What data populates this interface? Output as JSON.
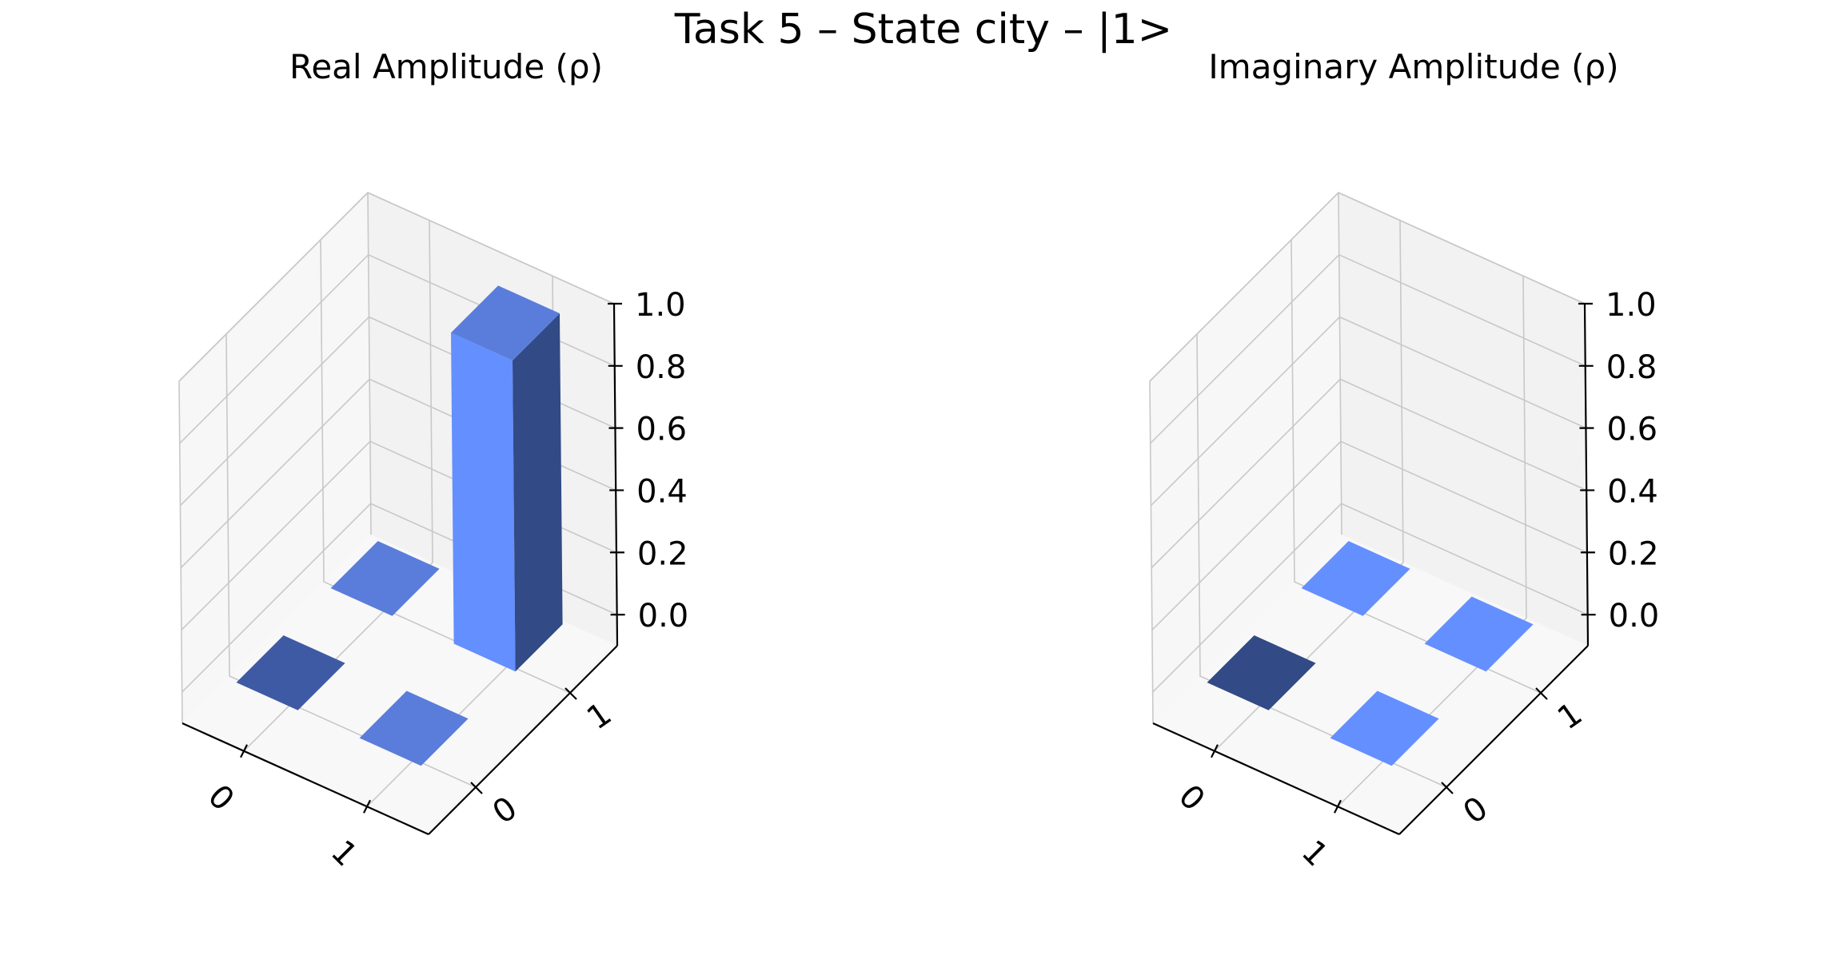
{
  "figure": {
    "title": "Task 5 – State city – |1>"
  },
  "colors": {
    "bar_top": "#5a7ddb",
    "bar_front": "#648fff",
    "bar_side": "#324a85",
    "pane_back": "#f2f2f2",
    "pane_side": "#f7f7f7",
    "pane_floor": "#f8f8f8",
    "grid": "#c8c8c8",
    "axis": "#000000"
  },
  "chart_data": [
    {
      "type": "bar3d",
      "title": "Real Amplitude (ρ)",
      "row_labels": [
        "0",
        "1"
      ],
      "col_labels": [
        "0",
        "1"
      ],
      "zlim": [
        0,
        1
      ],
      "z_ticks": [
        "0.0",
        "0.2",
        "0.4",
        "0.6",
        "0.8",
        "1.0"
      ],
      "matrix": [
        [
          0,
          0
        ],
        [
          0,
          1
        ]
      ]
    },
    {
      "type": "bar3d",
      "title": "Imaginary Amplitude (ρ)",
      "row_labels": [
        "0",
        "1"
      ],
      "col_labels": [
        "0",
        "1"
      ],
      "zlim": [
        0,
        1
      ],
      "z_ticks": [
        "0.0",
        "0.2",
        "0.4",
        "0.6",
        "0.8",
        "1.0"
      ],
      "matrix": [
        [
          0,
          0
        ],
        [
          0,
          0
        ]
      ]
    }
  ]
}
